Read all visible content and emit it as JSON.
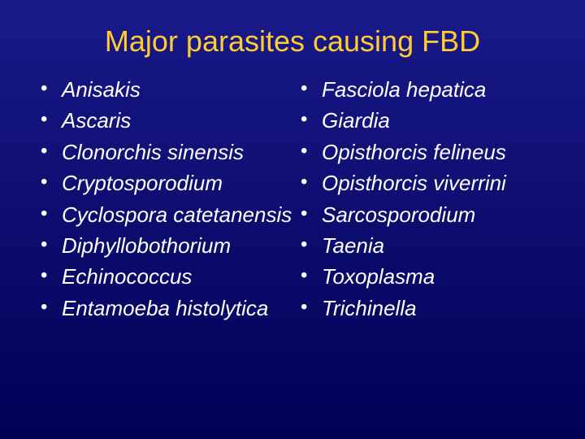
{
  "slide": {
    "title": "Major parasites causing FBD",
    "title_color": "#ffcc33",
    "title_fontsize": 36,
    "text_color": "#ffffff",
    "text_fontsize": 26,
    "background_gradient": [
      "#1a1a8a",
      "#0d0d70",
      "#000055"
    ],
    "left_items": [
      "Anisakis",
      "Ascaris",
      "Clonorchis sinensis",
      "Cryptosporodium",
      "Cyclospora catetanensis",
      "Diphyllobothorium",
      "Echinococcus",
      "Entamoeba histolytica"
    ],
    "right_items": [
      "Fasciola hepatica",
      "Giardia",
      "Opisthorcis felineus",
      "Opisthorcis viverrini",
      "Sarcosporodium",
      "Taenia",
      "Toxoplasma",
      "Trichinella"
    ]
  }
}
